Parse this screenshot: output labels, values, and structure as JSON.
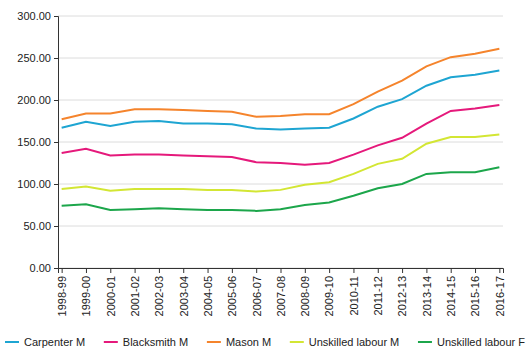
{
  "chart_data": {
    "type": "line",
    "categories": [
      "1998-99",
      "1999-00",
      "2000-01",
      "2001-02",
      "2002-03",
      "2003-04",
      "2004-05",
      "2005-06",
      "2006-07",
      "2007-08",
      "2008-09",
      "2009-10",
      "2010-11",
      "2011-12",
      "2012-13",
      "2013-14",
      "2014-15",
      "2015-16",
      "2016-17"
    ],
    "series": [
      {
        "name": "Carpenter M",
        "color": "#1ea5d2",
        "values": [
          167,
          174,
          169,
          174,
          175,
          172,
          172,
          171,
          166,
          165,
          166,
          167,
          178,
          192,
          201,
          217,
          227,
          230,
          235
        ]
      },
      {
        "name": "Blacksmith M",
        "color": "#e5197b",
        "values": [
          137,
          142,
          134,
          135,
          135,
          134,
          133,
          132,
          126,
          125,
          123,
          125,
          135,
          146,
          155,
          172,
          187,
          190,
          194
        ]
      },
      {
        "name": "Mason M",
        "color": "#f5842c",
        "values": [
          177,
          184,
          184,
          189,
          189,
          188,
          187,
          186,
          180,
          181,
          183,
          183,
          195,
          210,
          223,
          240,
          251,
          255,
          261
        ]
      },
      {
        "name": "Unskilled labour M",
        "color": "#d3e634",
        "values": [
          94,
          97,
          92,
          94,
          94,
          94,
          93,
          93,
          91,
          93,
          99,
          102,
          112,
          124,
          130,
          148,
          156,
          156,
          159
        ]
      },
      {
        "name": "Unskilled labour F",
        "color": "#1ca64b",
        "values": [
          74,
          76,
          69,
          70,
          71,
          70,
          69,
          69,
          68,
          70,
          75,
          78,
          86,
          95,
          100,
          112,
          114,
          114,
          120
        ]
      }
    ],
    "ylim": [
      0,
      300
    ],
    "yticks": [
      {
        "value": 0,
        "label": "0.00"
      },
      {
        "value": 50,
        "label": "50.00"
      },
      {
        "value": 100,
        "label": "100.00"
      },
      {
        "value": 150,
        "label": "150.00"
      },
      {
        "value": 200,
        "label": "200.00"
      },
      {
        "value": 250,
        "label": "250.00"
      },
      {
        "value": 300,
        "label": "300.00"
      }
    ],
    "grid": true,
    "legend": "bottom"
  }
}
